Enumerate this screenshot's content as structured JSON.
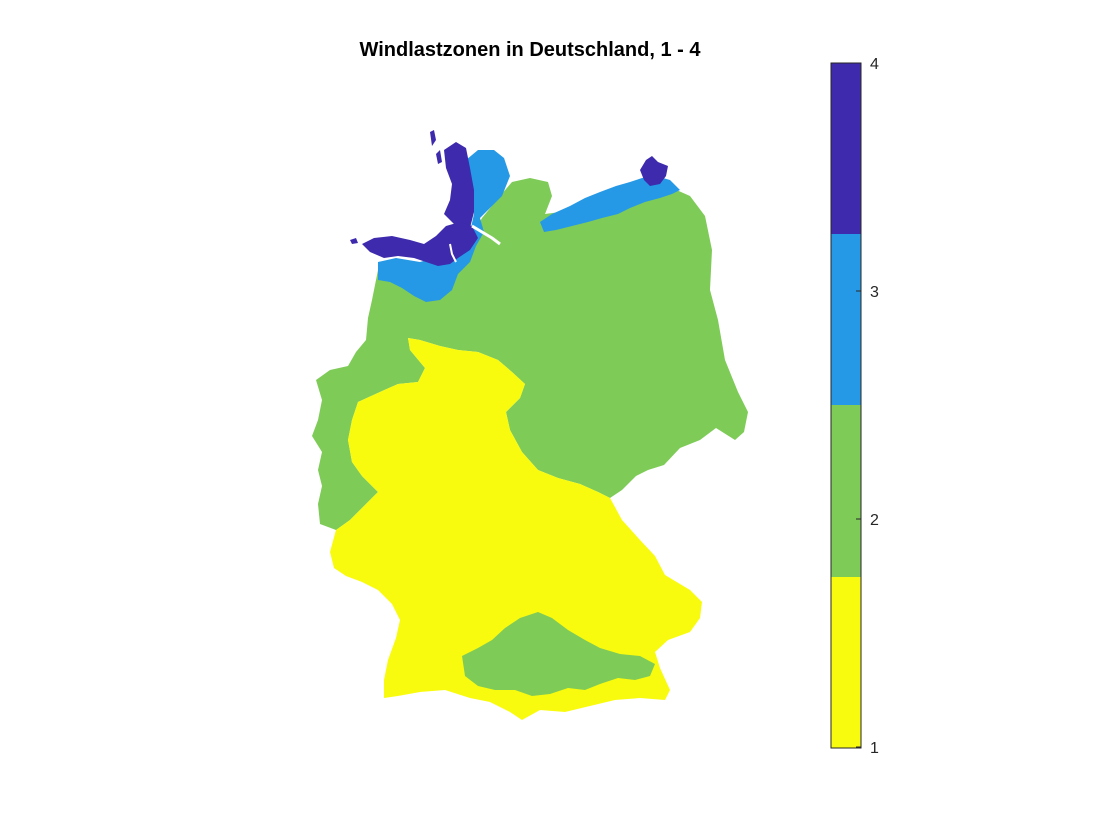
{
  "title": "Windlastzonen in Deutschland, 1 - 4",
  "colorbar": {
    "range": [
      1,
      4
    ],
    "ticks": [
      "1",
      "2",
      "3",
      "4"
    ],
    "zones": [
      {
        "zone": 1,
        "color": "#f9fb0e"
      },
      {
        "zone": 2,
        "color": "#7fcb58"
      },
      {
        "zone": 3,
        "color": "#2699e6"
      },
      {
        "zone": 4,
        "color": "#3d2aad"
      }
    ]
  },
  "map": {
    "zone_colors": {
      "zone_1": "#f9fb0e",
      "zone_2": "#7fcb58",
      "zone_3": "#2699e6",
      "zone_4": "#3d2aad"
    }
  }
}
